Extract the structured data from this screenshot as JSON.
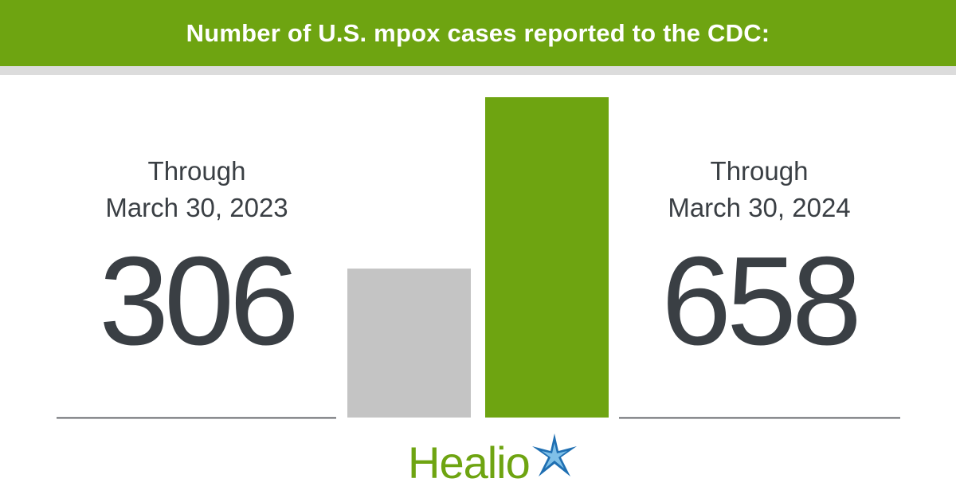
{
  "header": {
    "title": "Number of U.S. mpox cases reported to the CDC:"
  },
  "chart_data": {
    "type": "bar",
    "title": "Number of U.S. mpox cases reported to the CDC:",
    "categories": [
      "Through March 30, 2023",
      "Through March 30, 2024"
    ],
    "values": [
      306,
      658
    ],
    "value_labels": [
      "306",
      "658"
    ],
    "xlabel": "",
    "ylabel": "",
    "ylim": [
      0,
      658
    ],
    "grid": false,
    "legend": "none",
    "bar_colors": [
      "#c4c4c4",
      "#6ea411"
    ]
  },
  "left": {
    "label_line1": "Through",
    "label_line2": "March 30, 2023",
    "value": "306"
  },
  "right": {
    "label_line1": "Through",
    "label_line2": "March 30, 2024",
    "value": "658"
  },
  "logo": {
    "text": "Healio",
    "icon": "star-icon"
  },
  "colors": {
    "brand_green": "#6ea411",
    "bar_gray": "#c4c4c4",
    "text_dark": "#3a3f44",
    "rule_gray": "#dcdcdc",
    "star_blue": "#1f6fb2"
  }
}
